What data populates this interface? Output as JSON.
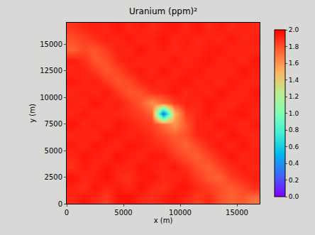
{
  "chart_data": {
    "type": "heatmap",
    "title": "Uranium (ppm)²",
    "x_label": "x (m)",
    "y_label": "y (m)",
    "x": [
      500,
      1500,
      2500,
      3500,
      4500,
      5500,
      6500,
      7500,
      8500,
      9500,
      10500,
      11500,
      12500,
      13500,
      14500,
      15500,
      16500
    ],
    "y": [
      500,
      1500,
      2500,
      3500,
      4500,
      5500,
      6500,
      7500,
      8500,
      9500,
      10500,
      11500,
      12500,
      13500,
      14500,
      15500,
      16500
    ],
    "z": [
      [
        1.9,
        1.95,
        1.9,
        1.85,
        1.95,
        1.97,
        1.9,
        1.88,
        1.92,
        1.95,
        1.9,
        1.85,
        1.9,
        1.8,
        1.75,
        1.78,
        1.7
      ],
      [
        1.92,
        1.88,
        1.95,
        1.9,
        1.93,
        1.9,
        1.95,
        1.9,
        1.88,
        1.93,
        1.95,
        1.9,
        1.85,
        1.8,
        1.76,
        1.82,
        1.88
      ],
      [
        1.95,
        1.9,
        1.92,
        1.96,
        1.9,
        1.88,
        1.93,
        1.95,
        1.9,
        1.9,
        1.92,
        1.85,
        1.78,
        1.75,
        1.85,
        1.9,
        1.92
      ],
      [
        1.88,
        1.93,
        1.9,
        1.95,
        1.92,
        1.9,
        1.95,
        1.92,
        1.9,
        1.94,
        1.88,
        1.8,
        1.76,
        1.84,
        1.9,
        1.93,
        1.9
      ],
      [
        1.9,
        1.95,
        1.92,
        1.9,
        1.96,
        1.92,
        1.9,
        1.94,
        1.93,
        1.86,
        1.8,
        1.76,
        1.83,
        1.9,
        1.95,
        1.9,
        1.92
      ],
      [
        1.93,
        1.9,
        1.95,
        1.92,
        1.9,
        1.95,
        1.93,
        1.9,
        1.88,
        1.8,
        1.75,
        1.82,
        1.9,
        1.94,
        1.9,
        1.95,
        1.9
      ],
      [
        1.9,
        1.92,
        1.9,
        1.95,
        1.93,
        1.9,
        1.92,
        1.88,
        1.82,
        1.76,
        1.8,
        1.9,
        1.93,
        1.9,
        1.95,
        1.92,
        1.9
      ],
      [
        1.95,
        1.9,
        1.93,
        1.9,
        1.95,
        1.92,
        1.88,
        1.84,
        1.72,
        1.6,
        1.78,
        1.92,
        1.9,
        1.95,
        1.92,
        1.9,
        1.93
      ],
      [
        1.9,
        1.94,
        1.9,
        1.92,
        1.9,
        1.88,
        1.84,
        1.76,
        0.25,
        1.5,
        1.85,
        1.9,
        1.94,
        1.9,
        1.93,
        1.95,
        1.9
      ],
      [
        1.92,
        1.9,
        1.95,
        1.9,
        1.93,
        1.86,
        1.78,
        1.62,
        1.72,
        1.85,
        1.92,
        1.9,
        1.95,
        1.92,
        1.9,
        1.93,
        1.92
      ],
      [
        1.9,
        1.93,
        1.9,
        1.94,
        1.86,
        1.78,
        1.8,
        1.88,
        1.9,
        1.94,
        1.9,
        1.93,
        1.9,
        1.95,
        1.92,
        1.9,
        1.94
      ],
      [
        1.94,
        1.9,
        1.93,
        1.86,
        1.78,
        1.82,
        1.9,
        1.93,
        1.9,
        1.92,
        1.95,
        1.9,
        1.93,
        1.9,
        1.94,
        1.92,
        1.9
      ],
      [
        1.9,
        1.92,
        1.86,
        1.78,
        1.82,
        1.9,
        1.94,
        1.9,
        1.95,
        1.9,
        1.92,
        1.94,
        1.9,
        1.92,
        1.9,
        1.95,
        1.92
      ],
      [
        1.93,
        1.88,
        1.78,
        1.8,
        1.9,
        1.93,
        1.9,
        1.92,
        1.9,
        1.94,
        1.9,
        1.92,
        1.95,
        1.9,
        1.93,
        1.9,
        1.94
      ],
      [
        1.75,
        1.82,
        1.78,
        1.86,
        1.92,
        1.9,
        1.95,
        1.9,
        1.93,
        1.9,
        1.92,
        1.9,
        1.93,
        1.94,
        1.9,
        1.92,
        1.9
      ],
      [
        1.8,
        1.84,
        1.88,
        1.92,
        1.9,
        1.94,
        1.9,
        1.92,
        1.95,
        1.9,
        1.93,
        1.9,
        1.92,
        1.9,
        1.94,
        1.9,
        1.92
      ],
      [
        1.86,
        1.9,
        1.92,
        1.9,
        1.95,
        1.9,
        1.93,
        1.9,
        1.92,
        1.94,
        1.9,
        1.95,
        1.9,
        1.93,
        1.9,
        1.92,
        1.9
      ]
    ],
    "xlim": [
      0,
      17000
    ],
    "ylim": [
      0,
      17000
    ],
    "xticks": [
      0,
      5000,
      10000,
      15000
    ],
    "yticks": [
      0,
      2500,
      5000,
      7500,
      10000,
      12500,
      15000
    ],
    "colorbar": {
      "range": [
        0,
        2
      ],
      "ticks": [
        {
          "value": 0,
          "label": "0.0"
        },
        {
          "value": 0.2,
          "label": "0.2"
        },
        {
          "value": 0.4,
          "label": "0.4"
        },
        {
          "value": 0.6,
          "label": "0.6"
        },
        {
          "value": 0.8,
          "label": "0.8"
        },
        {
          "value": 1,
          "label": "1.0"
        },
        {
          "value": 1.2,
          "label": "1.2"
        },
        {
          "value": 1.4,
          "label": "1.4"
        },
        {
          "value": 1.6,
          "label": "1.6"
        },
        {
          "value": 1.8,
          "label": "1.8"
        },
        {
          "value": 2,
          "label": "2.0"
        }
      ]
    },
    "grid": false
  }
}
